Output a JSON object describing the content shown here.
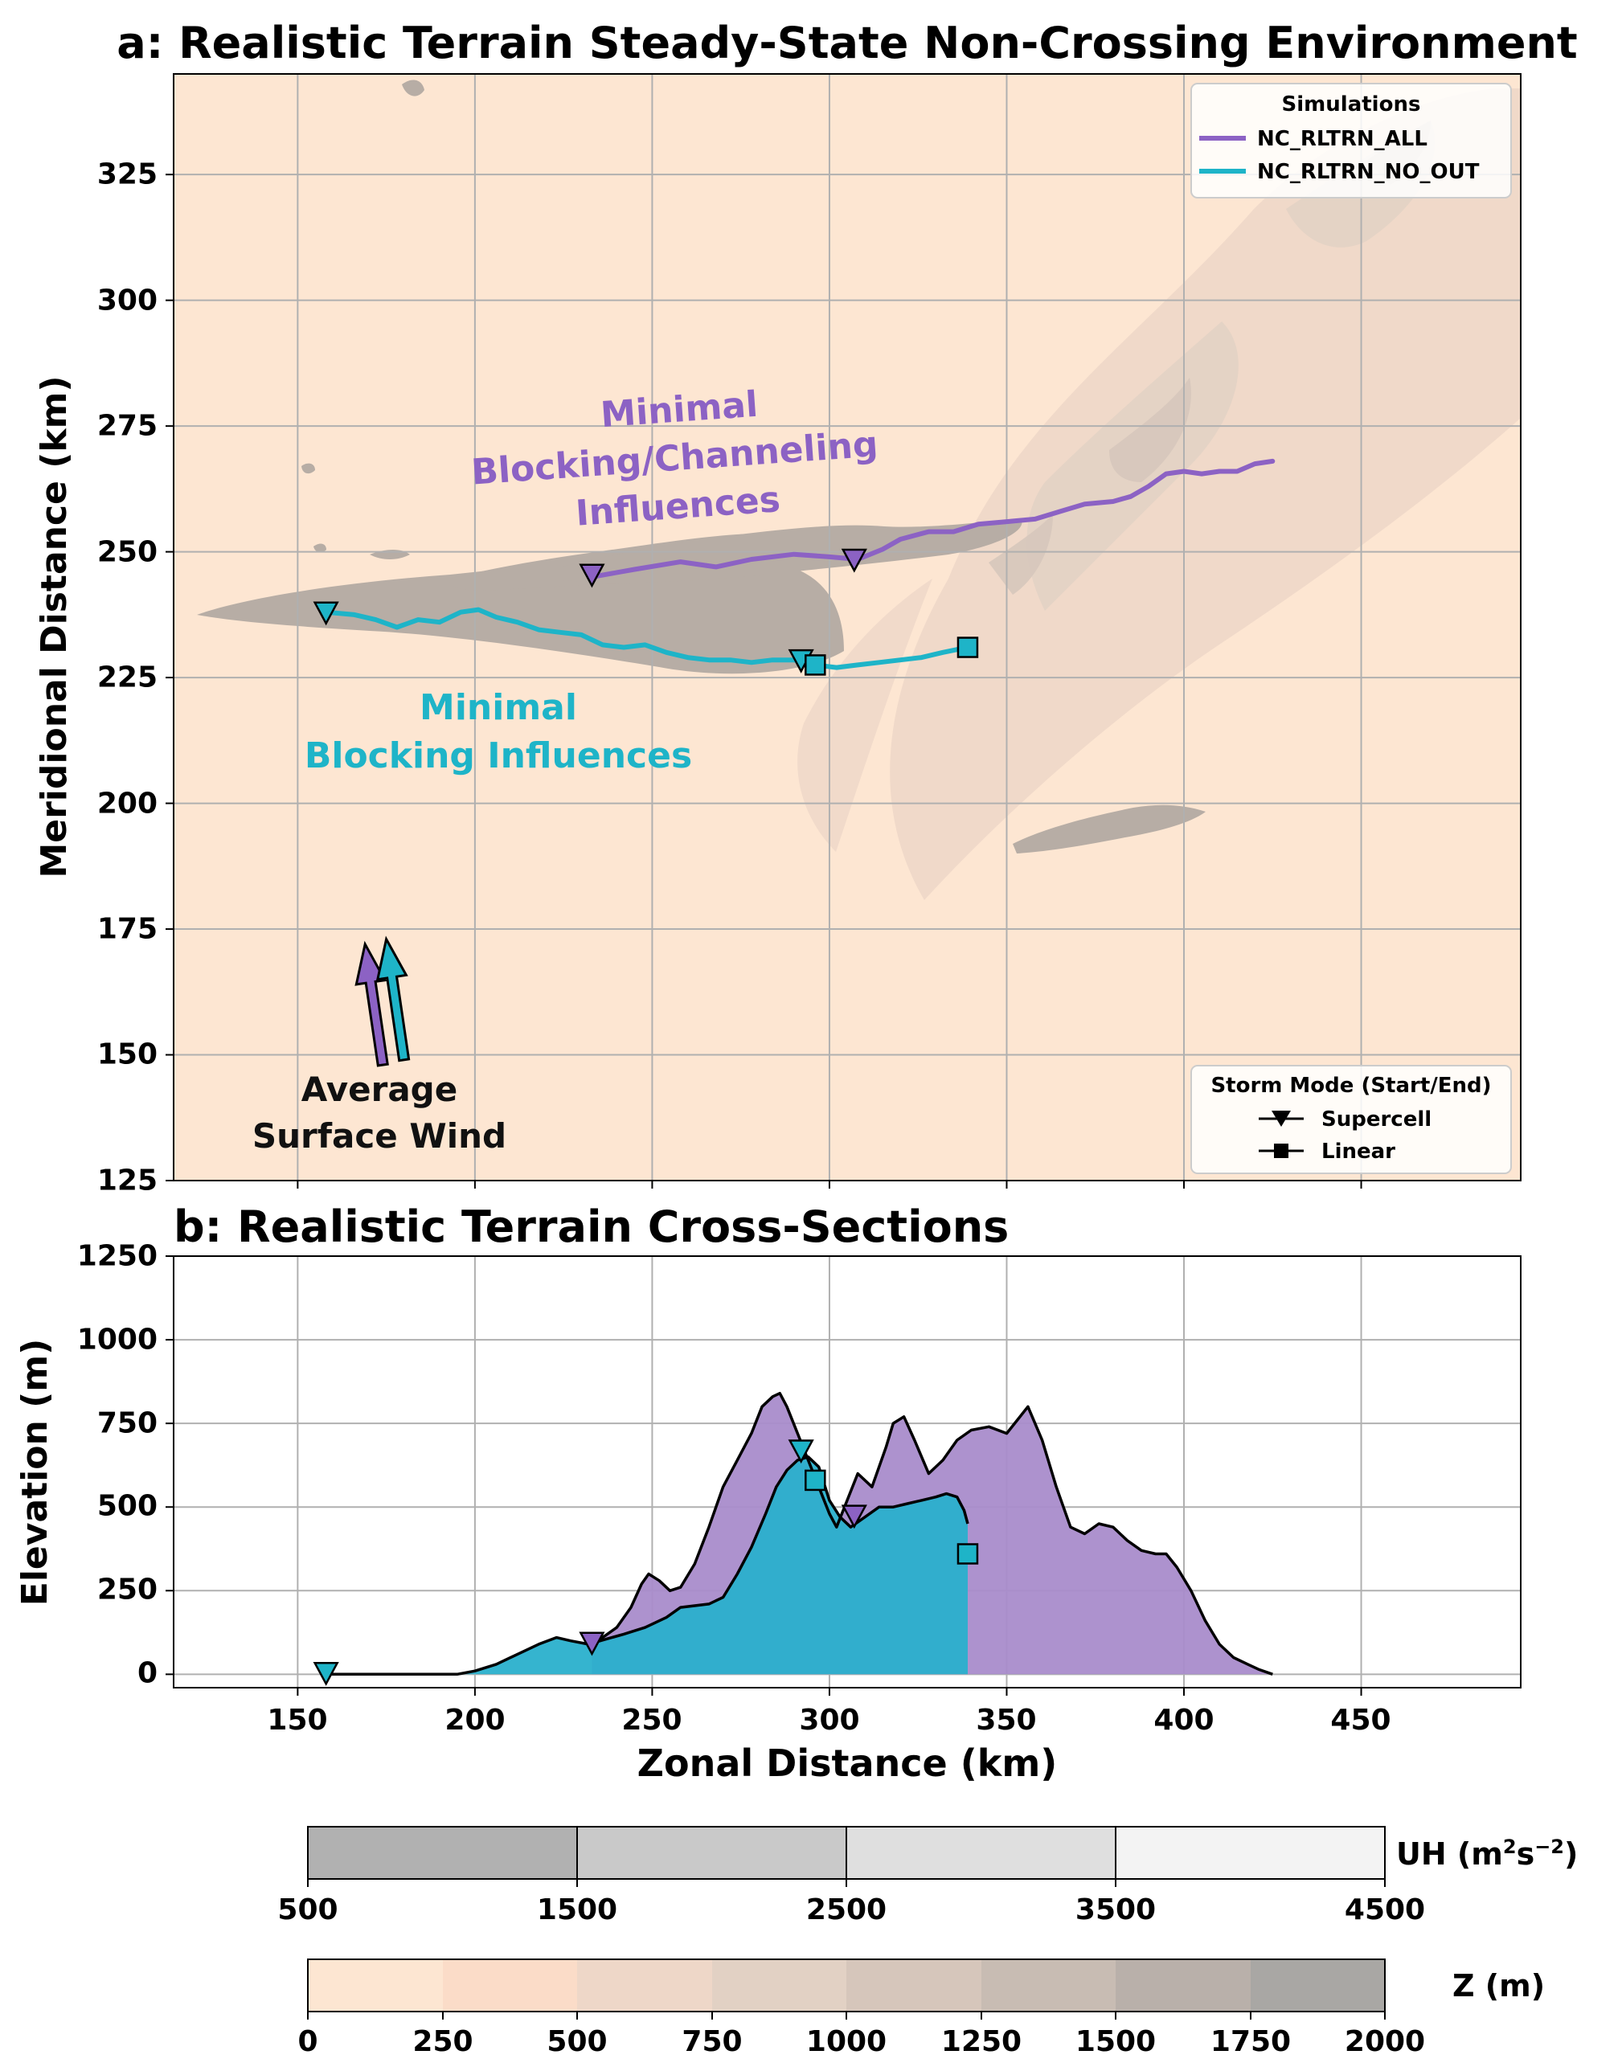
{
  "panel_a": {
    "title": "a: Realistic Terrain Steady-State Non-Crossing Environment",
    "ylabel": "Meridional Distance (km)",
    "xlim": [
      115,
      495
    ],
    "ylim": [
      125,
      345
    ],
    "xticks": [
      150,
      200,
      250,
      300,
      350,
      400,
      450
    ],
    "yticks": [
      125,
      150,
      175,
      200,
      225,
      250,
      275,
      300,
      325
    ],
    "ytick_labels": [
      "125",
      "150",
      "175",
      "200",
      "225",
      "250",
      "275",
      "300",
      "325"
    ],
    "legend_sim": {
      "title": "Simulations",
      "items": [
        {
          "label": "NC_RLTRN_ALL",
          "color": "#8c62c4"
        },
        {
          "label": "NC_RLTRN_NO_OUT",
          "color": "#1eb4c8"
        }
      ]
    },
    "legend_mode": {
      "title": "Storm Mode (Start/End)",
      "items": [
        {
          "label": "Supercell",
          "marker": "triangle-down"
        },
        {
          "label": "Linear",
          "marker": "square"
        }
      ]
    },
    "annotations": {
      "purple_text": [
        "Minimal",
        "Blocking/Channeling",
        "Influences"
      ],
      "cyan_text": [
        "Minimal",
        "Blocking Influences"
      ],
      "wind_text": [
        "Average",
        "Surface Wind"
      ]
    }
  },
  "panel_b": {
    "title": "b: Realistic Terrain Cross-Sections",
    "xlabel": "Zonal Distance (km)",
    "ylabel": "Elevation (m)",
    "xlim": [
      115,
      495
    ],
    "ylim": [
      -40,
      1250
    ],
    "xticks": [
      150,
      200,
      250,
      300,
      350,
      400,
      450
    ],
    "xtick_labels": [
      "150",
      "200",
      "250",
      "300",
      "350",
      "400",
      "450"
    ],
    "yticks": [
      0,
      250,
      500,
      750,
      1000,
      1250
    ],
    "ytick_labels": [
      "0",
      "250",
      "500",
      "750",
      "1000",
      "1250"
    ]
  },
  "colorbar_uh": {
    "label_main": "UH (m",
    "label_sup1": "2",
    "label_mid": "s",
    "label_sup2": "−2",
    "label_end": ")",
    "ticks": [
      "500",
      "1500",
      "2500",
      "3500",
      "4500"
    ],
    "colors": [
      "#b1b1b1",
      "#c9c9c9",
      "#dfdfdf",
      "#f3f3f3"
    ]
  },
  "colorbar_z": {
    "label": "Z (m)",
    "ticks": [
      "0",
      "250",
      "500",
      "750",
      "1000",
      "1250",
      "1500",
      "1750",
      "2000"
    ],
    "colors": [
      "#fde6d2",
      "#fbdcc8",
      "#eed7c8",
      "#e2d1c4",
      "#d6c6bb",
      "#c8bcb3",
      "#b9b0aa",
      "#a9a7a4"
    ]
  },
  "chart_data": [
    {
      "type": "line",
      "panel": "a",
      "series": [
        {
          "name": "NC_RLTRN_ALL",
          "color": "#8c62c4",
          "x": [
            233,
            245,
            258,
            268,
            278,
            290,
            300,
            308,
            315,
            320,
            328,
            335,
            342,
            350,
            358,
            365,
            372,
            380,
            385,
            390,
            395,
            400,
            405,
            410,
            415,
            420,
            425
          ],
          "y": [
            245,
            246.5,
            248,
            247,
            248.5,
            249.5,
            249,
            248.5,
            250.5,
            252.5,
            254,
            254,
            255.5,
            256,
            256.5,
            258,
            259.5,
            260,
            261,
            263,
            265.5,
            266,
            265.5,
            266,
            266,
            267.5,
            268
          ]
        },
        {
          "name": "NC_RLTRN_NO_OUT",
          "color": "#1eb4c8",
          "x": [
            158,
            166,
            172,
            178,
            184,
            190,
            196,
            201,
            206,
            212,
            218,
            224,
            230,
            236,
            242,
            248,
            254,
            260,
            266,
            272,
            278,
            284,
            290,
            296,
            302,
            308,
            314,
            320,
            326,
            332,
            339
          ],
          "y": [
            238,
            237.5,
            236.5,
            235,
            236.5,
            236,
            238,
            238.5,
            237,
            236,
            234.5,
            234,
            233.5,
            231.5,
            231,
            231.5,
            230,
            229,
            228.5,
            228.5,
            228,
            228.5,
            228.5,
            227.5,
            227,
            227.5,
            228,
            228.5,
            229,
            230,
            231
          ]
        }
      ],
      "markers": [
        {
          "series": "NC_RLTRN_ALL",
          "shape": "triangle-down",
          "x": 233,
          "y": 245.5
        },
        {
          "series": "NC_RLTRN_ALL",
          "shape": "triangle-down",
          "x": 307,
          "y": 248.5
        },
        {
          "series": "NC_RLTRN_NO_OUT",
          "shape": "triangle-down",
          "x": 158,
          "y": 238
        },
        {
          "series": "NC_RLTRN_NO_OUT",
          "shape": "triangle-down",
          "x": 292,
          "y": 228.5
        },
        {
          "series": "NC_RLTRN_NO_OUT",
          "shape": "square",
          "x": 296,
          "y": 227.5
        },
        {
          "series": "NC_RLTRN_NO_OUT",
          "shape": "square",
          "x": 339,
          "y": 231
        }
      ],
      "wind_arrows": [
        {
          "color": "#8c62c4",
          "x0": 174,
          "y0": 148,
          "x1": 169,
          "y1": 172
        },
        {
          "color": "#1eb4c8",
          "x0": 180,
          "y0": 149,
          "x1": 175,
          "y1": 173
        }
      ]
    },
    {
      "type": "area",
      "panel": "b",
      "series": [
        {
          "name": "NC_RLTRN_ALL",
          "color": "#a98ccb",
          "x": [
            233,
            236,
            240,
            244,
            247,
            249,
            252,
            255,
            258,
            262,
            266,
            270,
            274,
            278,
            281,
            284,
            286,
            288,
            291,
            294,
            297,
            300,
            302,
            305,
            308,
            312,
            316,
            318,
            321,
            324,
            328,
            332,
            336,
            340,
            345,
            350,
            353,
            356,
            360,
            364,
            368,
            372,
            376,
            380,
            384,
            388,
            392,
            395,
            398,
            402,
            406,
            410,
            414,
            418,
            421,
            425
          ],
          "y": [
            90,
            110,
            140,
            200,
            270,
            300,
            280,
            250,
            260,
            330,
            440,
            560,
            640,
            720,
            800,
            830,
            840,
            800,
            720,
            640,
            560,
            480,
            440,
            520,
            600,
            560,
            680,
            750,
            770,
            700,
            600,
            640,
            700,
            730,
            740,
            720,
            760,
            800,
            700,
            560,
            440,
            420,
            450,
            440,
            400,
            370,
            360,
            360,
            320,
            250,
            160,
            90,
            50,
            30,
            15,
            0
          ]
        },
        {
          "name": "NC_RLTRN_NO_OUT",
          "color": "#2ab0cc",
          "x": [
            158,
            165,
            175,
            185,
            195,
            200,
            206,
            212,
            218,
            223,
            227,
            232,
            237,
            242,
            248,
            254,
            258,
            262,
            266,
            270,
            274,
            278,
            282,
            285,
            288,
            291,
            294,
            297,
            300,
            303,
            306,
            310,
            314,
            318,
            322,
            326,
            330,
            333,
            336,
            338,
            339
          ],
          "y": [
            0,
            0,
            0,
            0,
            0,
            10,
            30,
            60,
            90,
            110,
            100,
            90,
            105,
            120,
            140,
            170,
            200,
            205,
            210,
            230,
            300,
            380,
            480,
            560,
            610,
            640,
            650,
            620,
            520,
            470,
            440,
            470,
            500,
            500,
            510,
            520,
            530,
            540,
            530,
            490,
            450
          ]
        }
      ],
      "markers": [
        {
          "series": "NC_RLTRN_NO_OUT",
          "shape": "triangle-down",
          "x": 158,
          "y": 5
        },
        {
          "series": "NC_RLTRN_ALL",
          "shape": "triangle-down",
          "x": 233,
          "y": 95
        },
        {
          "series": "NC_RLTRN_NO_OUT",
          "shape": "triangle-down",
          "x": 292,
          "y": 670
        },
        {
          "series": "NC_RLTRN_NO_OUT",
          "shape": "square",
          "x": 296,
          "y": 580
        },
        {
          "series": "NC_RLTRN_ALL",
          "shape": "triangle-down",
          "x": 307,
          "y": 475
        },
        {
          "series": "NC_RLTRN_NO_OUT",
          "shape": "square",
          "x": 339,
          "y": 360
        }
      ]
    }
  ]
}
